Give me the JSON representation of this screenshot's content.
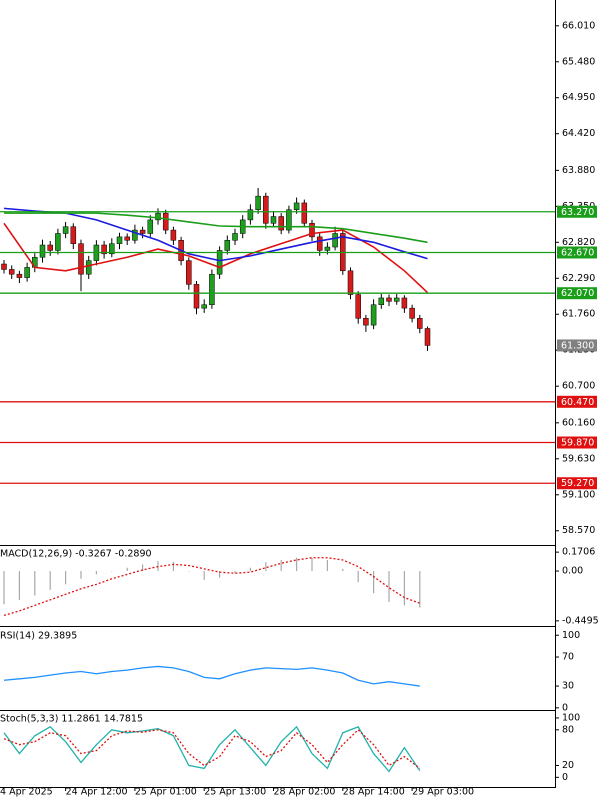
{
  "chart_data": [
    {
      "type": "candlestick",
      "categories": [
        "4 Apr 2025",
        null,
        null,
        null,
        null,
        null,
        null,
        null,
        "24 Apr 12:00",
        null,
        null,
        null,
        null,
        null,
        null,
        null,
        null,
        "25 Apr 01:00",
        null,
        null,
        null,
        null,
        null,
        null,
        null,
        null,
        "25 Apr 13:00",
        null,
        null,
        null,
        null,
        null,
        null,
        null,
        null,
        "28 Apr 02:00",
        null,
        null,
        null,
        null,
        null,
        null,
        null,
        null,
        "28 Apr 14:00",
        null,
        null,
        null,
        null,
        null,
        null,
        null,
        null,
        "29 Apr 03:00",
        null,
        null
      ],
      "open": [
        62.5,
        62.42,
        62.35,
        62.3,
        62.45,
        62.6,
        62.78,
        62.7,
        62.95,
        63.05,
        62.8,
        62.35,
        62.55,
        62.78,
        62.65,
        62.8,
        62.9,
        62.85,
        63.0,
        62.95,
        63.15,
        63.25,
        63.0,
        62.85,
        62.55,
        62.2,
        61.85,
        61.9,
        62.35,
        62.7,
        62.85,
        62.95,
        63.15,
        63.3,
        63.5,
        63.1,
        63.2,
        63.0,
        63.3,
        63.4,
        63.1,
        62.9,
        62.7,
        62.75,
        62.95,
        62.4,
        62.05,
        61.7,
        61.6,
        61.9,
        62.0,
        61.95,
        62.0,
        61.85,
        61.7,
        61.55
      ],
      "high": [
        62.56,
        62.48,
        62.4,
        62.52,
        62.66,
        62.86,
        62.84,
        63.02,
        63.12,
        63.1,
        62.86,
        62.62,
        62.85,
        62.84,
        62.88,
        62.96,
        62.95,
        63.08,
        63.05,
        63.22,
        63.32,
        63.3,
        63.05,
        62.9,
        62.6,
        62.25,
        61.98,
        62.42,
        62.76,
        62.92,
        63.02,
        63.22,
        63.38,
        63.62,
        63.55,
        63.28,
        63.25,
        63.36,
        63.48,
        63.45,
        63.15,
        62.95,
        62.82,
        63.05,
        63.0,
        62.45,
        62.1,
        61.75,
        61.98,
        62.06,
        62.05,
        62.06,
        62.04,
        61.9,
        61.75,
        61.58
      ],
      "low": [
        62.36,
        62.28,
        62.22,
        62.24,
        62.38,
        62.52,
        62.62,
        62.64,
        62.88,
        62.72,
        62.1,
        62.28,
        62.48,
        62.58,
        62.6,
        62.72,
        62.78,
        62.8,
        62.88,
        62.9,
        63.08,
        62.94,
        62.78,
        62.48,
        62.12,
        61.76,
        61.78,
        61.84,
        62.28,
        62.64,
        62.78,
        62.88,
        63.08,
        63.24,
        63.02,
        63.04,
        62.94,
        62.95,
        63.24,
        63.04,
        62.84,
        62.62,
        62.64,
        62.7,
        62.34,
        61.98,
        61.62,
        61.5,
        61.54,
        61.84,
        61.88,
        61.9,
        61.78,
        61.64,
        61.48,
        61.22
      ],
      "close": [
        62.42,
        62.35,
        62.3,
        62.45,
        62.6,
        62.78,
        62.7,
        62.95,
        63.05,
        62.8,
        62.35,
        62.55,
        62.78,
        62.65,
        62.8,
        62.9,
        62.85,
        63.0,
        62.95,
        63.15,
        63.25,
        63.0,
        62.85,
        62.55,
        62.2,
        61.85,
        61.9,
        62.35,
        62.7,
        62.85,
        62.95,
        63.15,
        63.3,
        63.5,
        63.1,
        63.2,
        63.0,
        63.3,
        63.4,
        63.1,
        62.9,
        62.7,
        62.75,
        62.95,
        62.4,
        62.05,
        61.7,
        61.6,
        61.9,
        62.0,
        61.95,
        62.0,
        61.85,
        61.7,
        61.55,
        61.3
      ],
      "up_color": "#1f9e1f",
      "down_color": "#d41c1c",
      "ylim": [
        58.36,
        66.39
      ],
      "yticks": [
        {
          "value": 66.01,
          "label": "66.010"
        },
        {
          "value": 65.48,
          "label": "65.480"
        },
        {
          "value": 64.95,
          "label": "64.950"
        },
        {
          "value": 64.42,
          "label": "64.420"
        },
        {
          "value": 63.88,
          "label": "63.880"
        },
        {
          "value": 63.35,
          "label": "63.350"
        },
        {
          "value": 62.82,
          "label": "62.820"
        },
        {
          "value": 62.29,
          "label": "62.290"
        },
        {
          "value": 61.76,
          "label": "61.760"
        },
        {
          "value": 61.23,
          "label": "61.230"
        },
        {
          "value": 60.7,
          "label": "60.700"
        },
        {
          "value": 60.16,
          "label": "60.160"
        },
        {
          "value": 59.63,
          "label": "59.630"
        },
        {
          "value": 59.1,
          "label": "59.100"
        },
        {
          "value": 58.57,
          "label": "58.570"
        }
      ],
      "lines": [
        {
          "color": "#e01010",
          "x": [
            0,
            4,
            8,
            12,
            16,
            20,
            24,
            28,
            32,
            36,
            40,
            44,
            48,
            52,
            55
          ],
          "values": [
            63.1,
            62.45,
            62.4,
            62.5,
            62.6,
            62.72,
            62.62,
            62.45,
            62.65,
            62.8,
            62.95,
            63.0,
            62.75,
            62.4,
            62.08
          ]
        },
        {
          "color": "#1a1ae0",
          "x": [
            0,
            4,
            8,
            12,
            16,
            20,
            24,
            28,
            32,
            36,
            40,
            44,
            48,
            52,
            55
          ],
          "values": [
            63.32,
            63.28,
            63.25,
            63.15,
            63.0,
            62.85,
            62.65,
            62.55,
            62.62,
            62.72,
            62.82,
            62.9,
            62.82,
            62.68,
            62.58
          ]
        },
        {
          "color": "#1a9e1a",
          "x": [
            0,
            4,
            8,
            12,
            16,
            20,
            24,
            28,
            32,
            36,
            40,
            44,
            48,
            52,
            55
          ],
          "values": [
            63.25,
            63.25,
            63.25,
            63.25,
            63.22,
            63.18,
            63.12,
            63.06,
            63.05,
            63.05,
            63.05,
            63.02,
            62.95,
            62.88,
            62.82
          ]
        }
      ],
      "levels": [
        {
          "value": 63.27,
          "label": "63.270",
          "color": "#1a9e1a"
        },
        {
          "value": 62.67,
          "label": "62.670",
          "color": "#1a9e1a"
        },
        {
          "value": 62.07,
          "label": "62.070",
          "color": "#1a9e1a"
        },
        {
          "value": 61.3,
          "label": "61.300",
          "color": "#808080"
        },
        {
          "value": 60.47,
          "label": "60.470",
          "color": "#e01010"
        },
        {
          "value": 59.87,
          "label": "59.870",
          "color": "#e01010"
        },
        {
          "value": 59.27,
          "label": "59.270",
          "color": "#e01010"
        }
      ]
    },
    {
      "type": "macd",
      "title": "MACD(12,26,9) -0.3267 -0.2890",
      "x": [
        0,
        2,
        4,
        6,
        8,
        10,
        12,
        14,
        16,
        18,
        20,
        22,
        24,
        26,
        28,
        30,
        32,
        34,
        36,
        38,
        40,
        42,
        44,
        46,
        48,
        50,
        52,
        54
      ],
      "bars": [
        -0.3,
        -0.26,
        -0.22,
        -0.17,
        -0.12,
        -0.07,
        -0.03,
        0.0,
        0.03,
        0.06,
        0.09,
        0.08,
        0.0,
        -0.08,
        -0.06,
        -0.02,
        0.03,
        0.08,
        0.1,
        0.12,
        0.12,
        0.1,
        0.02,
        -0.1,
        -0.2,
        -0.28,
        -0.31,
        -0.33
      ],
      "signal": [
        -0.4,
        -0.36,
        -0.31,
        -0.26,
        -0.21,
        -0.16,
        -0.12,
        -0.07,
        -0.03,
        0.01,
        0.04,
        0.06,
        0.05,
        0.02,
        -0.01,
        -0.02,
        -0.01,
        0.03,
        0.07,
        0.1,
        0.12,
        0.12,
        0.1,
        0.04,
        -0.05,
        -0.15,
        -0.24,
        -0.29
      ],
      "bar_color": "#a8a8a8",
      "signal_color": "#e01010",
      "ylim": [
        -0.496,
        0.217
      ],
      "yticks": [
        0.1706,
        {
          "value": 0,
          "label": "0.00"
        },
        -0.4495
      ]
    },
    {
      "type": "rsi",
      "title": "RSI(14) 29.3895",
      "x": [
        0,
        2,
        4,
        6,
        8,
        10,
        12,
        14,
        16,
        18,
        20,
        22,
        24,
        26,
        28,
        30,
        32,
        34,
        36,
        38,
        40,
        42,
        44,
        46,
        48,
        50,
        52,
        54
      ],
      "values": [
        38,
        40,
        42,
        45,
        48,
        50,
        47,
        50,
        52,
        55,
        57,
        55,
        50,
        42,
        40,
        47,
        52,
        55,
        54,
        53,
        55,
        52,
        48,
        38,
        33,
        36,
        33,
        30
      ],
      "color": "#1e90ff",
      "ylim": [
        -3,
        110
      ],
      "yticks": [
        100,
        70,
        30,
        0
      ]
    },
    {
      "type": "stoch",
      "title": "Stoch(5,3,3) 11.2861 14.7815",
      "x": [
        0,
        2,
        4,
        6,
        8,
        10,
        12,
        14,
        16,
        18,
        20,
        22,
        24,
        26,
        28,
        30,
        32,
        34,
        36,
        38,
        40,
        42,
        44,
        46,
        48,
        50,
        52,
        54
      ],
      "main": [
        75,
        40,
        70,
        85,
        60,
        25,
        55,
        80,
        75,
        78,
        82,
        70,
        20,
        15,
        55,
        80,
        50,
        20,
        60,
        85,
        40,
        15,
        75,
        85,
        40,
        10,
        50,
        11
      ],
      "signal": [
        65,
        55,
        60,
        75,
        70,
        40,
        45,
        70,
        78,
        76,
        80,
        75,
        40,
        20,
        35,
        70,
        60,
        35,
        45,
        75,
        55,
        25,
        55,
        80,
        55,
        20,
        35,
        15
      ],
      "main_color": "#20b2aa",
      "signal_color": "#e01010",
      "ylim": [
        -18,
        110
      ],
      "yticks": [
        100,
        80,
        20,
        0
      ]
    }
  ]
}
